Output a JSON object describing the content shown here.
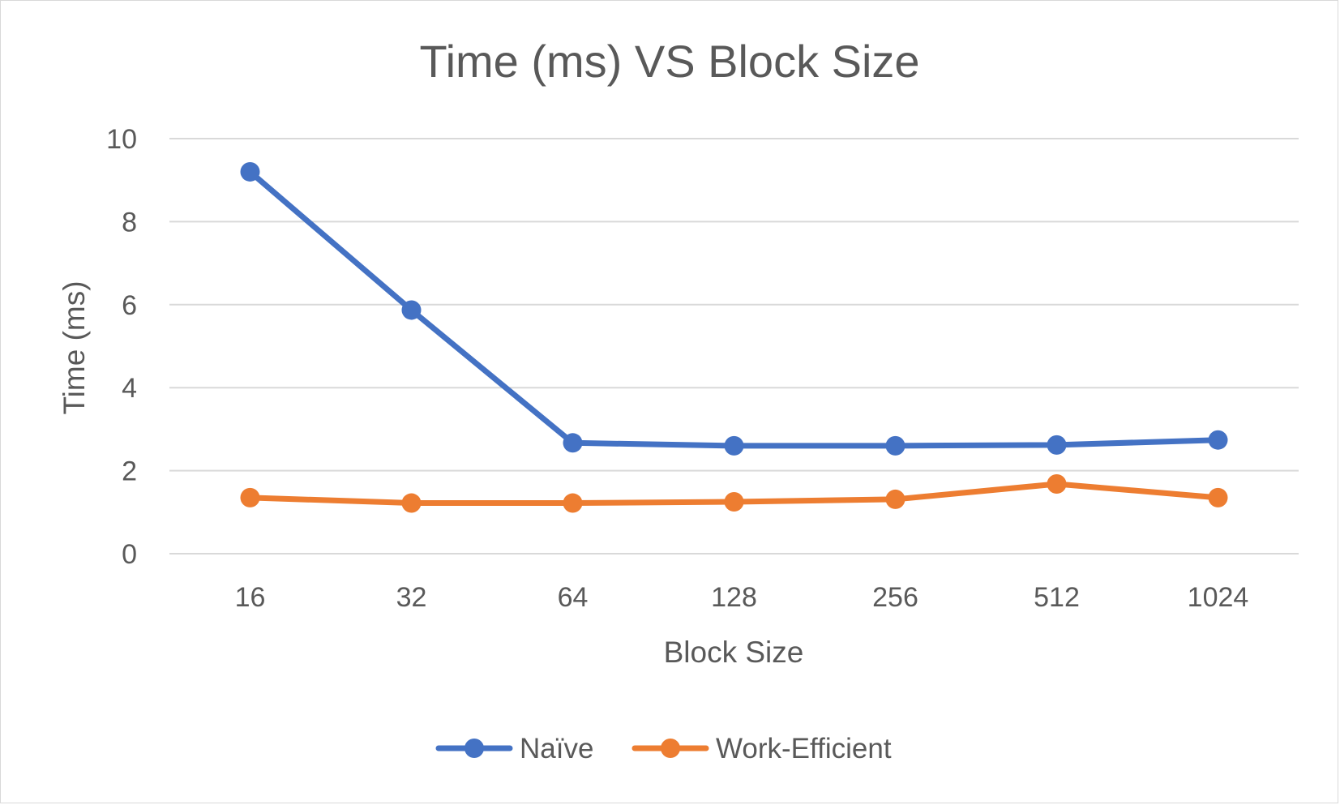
{
  "chart_data": {
    "type": "line",
    "title": "Time (ms) VS Block Size",
    "xlabel": "Block Size",
    "ylabel": "Time (ms)",
    "categories": [
      "16",
      "32",
      "64",
      "128",
      "256",
      "512",
      "1024"
    ],
    "ylim": [
      0,
      10
    ],
    "yticks": [
      0,
      2,
      4,
      6,
      8,
      10
    ],
    "grid": true,
    "legend_position": "bottom",
    "series": [
      {
        "name": "Naïve",
        "color": "#4472C4",
        "values": [
          9.2,
          5.87,
          2.67,
          2.6,
          2.6,
          2.62,
          2.74
        ]
      },
      {
        "name": "Work-Efficient",
        "color": "#ED7D31",
        "values": [
          1.35,
          1.22,
          1.22,
          1.25,
          1.31,
          1.68,
          1.35
        ]
      }
    ]
  }
}
